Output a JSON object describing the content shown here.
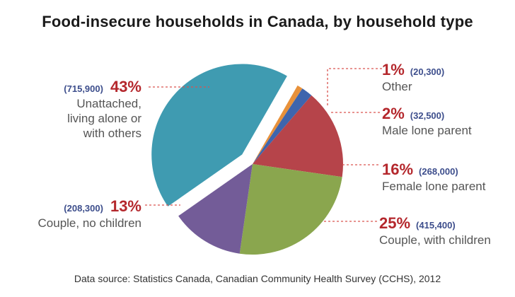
{
  "chart_data": {
    "type": "pie",
    "title": "Food-insecure households in Canada, by household type",
    "source": "Data source: Statistics Canada, Canadian Community Health Survey (CCHS), 2012",
    "slices": [
      {
        "label": "Unattached, living alone or with others",
        "label_lines": [
          "Unattached,",
          "living alone or",
          "with others"
        ],
        "percent": 43,
        "percent_text": "43%",
        "count": 715900,
        "count_text": "(715,900)",
        "color": "#3f9bb1",
        "exploded": true
      },
      {
        "label": "Other",
        "label_lines": [
          "Other"
        ],
        "percent": 1,
        "percent_text": "1%",
        "count": 20300,
        "count_text": "(20,300)",
        "color": "#e8913a",
        "exploded": false
      },
      {
        "label": "Male lone parent",
        "label_lines": [
          "Male lone parent"
        ],
        "percent": 2,
        "percent_text": "2%",
        "count": 32500,
        "count_text": "(32,500)",
        "color": "#3e65ad",
        "exploded": false
      },
      {
        "label": "Female lone parent",
        "label_lines": [
          "Female lone parent"
        ],
        "percent": 16,
        "percent_text": "16%",
        "count": 268000,
        "count_text": "(268,000)",
        "color": "#b6444a",
        "exploded": false
      },
      {
        "label": "Couple, with children",
        "label_lines": [
          "Couple, with children"
        ],
        "percent": 25,
        "percent_text": "25%",
        "count": 415400,
        "count_text": "(415,400)",
        "color": "#8aa64e",
        "exploded": false
      },
      {
        "label": "Couple, no children",
        "label_lines": [
          "Couple, no children"
        ],
        "percent": 13,
        "percent_text": "13%",
        "count": 208300,
        "count_text": "(208,300)",
        "color": "#735c98",
        "exploded": false
      }
    ],
    "leader_color": "#d9534f"
  }
}
